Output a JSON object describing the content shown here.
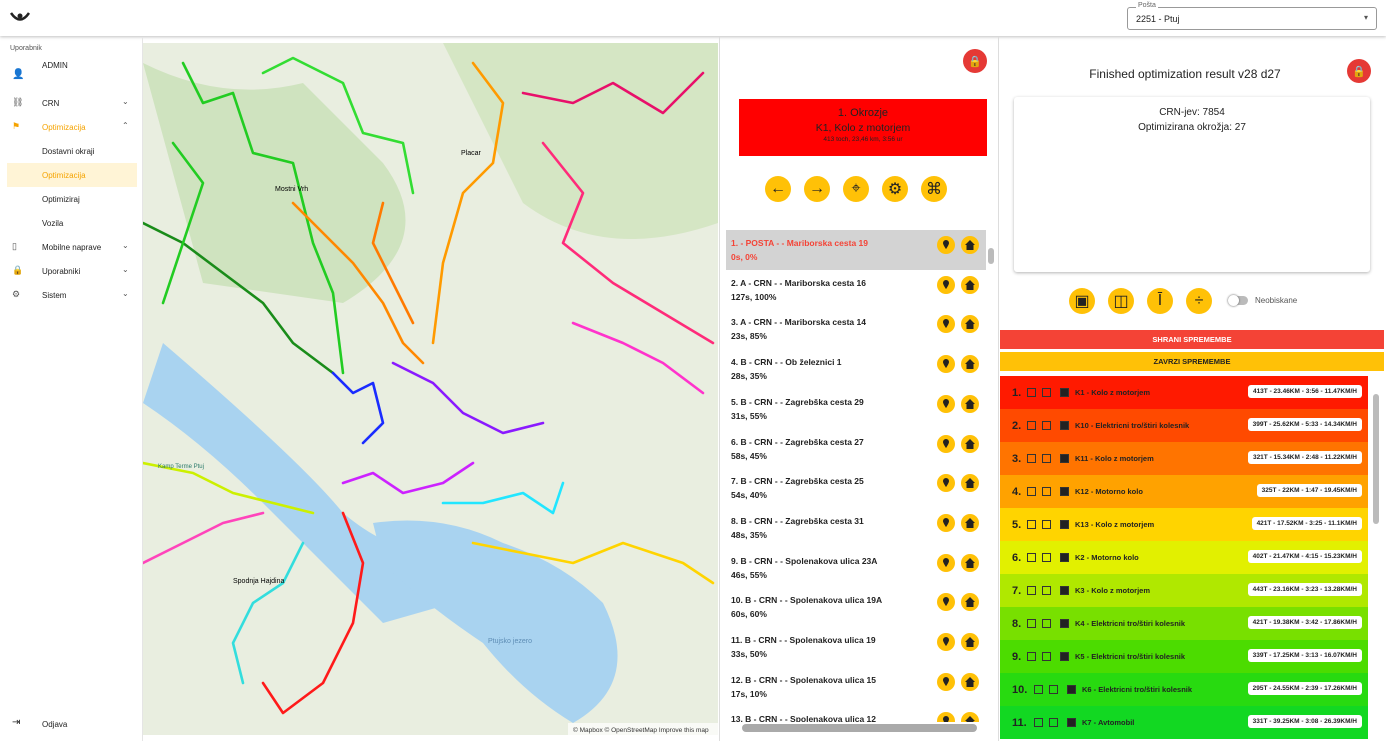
{
  "header": {
    "select_label": "Pošta",
    "select_value": "2251 - Ptuj"
  },
  "sidebar": {
    "user_label": "Uporabnik",
    "user": "ADMIN",
    "menu": [
      {
        "label": "CRN"
      },
      {
        "label": "Optimizacija",
        "items": [
          "Dostavni okraji",
          "Optimizacija",
          "Optimiziraj",
          "Vozila"
        ]
      },
      {
        "label": "Mobilne naprave"
      },
      {
        "label": "Uporabniki"
      },
      {
        "label": "Sistem"
      }
    ],
    "logout": "Odjava"
  },
  "map": {
    "labels": [
      "Mostni Vrh",
      "Placar",
      "Spodnja Hajdina",
      "Ptujsko jezero",
      "Kamp Terme Ptuj"
    ],
    "attribution": "© Mapbox © OpenStreetMap Improve this map"
  },
  "district": {
    "title": "1. Okrozje",
    "subtitle": "K1, Kolo z motorjem",
    "details": "413 toch, 23,46 km, 3:56 ur"
  },
  "stops": [
    {
      "title": "1. - POSTA - - Mariborska cesta 19",
      "info": "0s, 0%"
    },
    {
      "title": "2. A - CRN - - Mariborska cesta 16",
      "info": "127s, 100%"
    },
    {
      "title": "3. A - CRN - - Mariborska cesta 14",
      "info": "23s, 85%"
    },
    {
      "title": "4. B - CRN - - Ob železnici 1",
      "info": "28s, 35%"
    },
    {
      "title": "5. B - CRN - - Zagrebška cesta 29",
      "info": "31s, 55%"
    },
    {
      "title": "6. B - CRN - - Zagrebška cesta 27",
      "info": "58s, 45%"
    },
    {
      "title": "7. B - CRN - - Zagrebška cesta 25",
      "info": "54s, 40%"
    },
    {
      "title": "8. B - CRN - - Zagrebška cesta 31",
      "info": "48s, 35%"
    },
    {
      "title": "9. B - CRN - - Spolenakova ulica 23A",
      "info": "46s, 55%"
    },
    {
      "title": "10. B - CRN - - Spolenakova ulica 19A",
      "info": "60s, 60%"
    },
    {
      "title": "11. B - CRN - - Spolenakova ulica 19",
      "info": "33s, 50%"
    },
    {
      "title": "12. B - CRN - - Spolenakova ulica 15",
      "info": "17s, 10%"
    },
    {
      "title": "13. B - CRN - - Spolenakova ulica 12"
    }
  ],
  "result": {
    "title": "Finished optimization result v28 d27",
    "crn": "CRN-jev: 7854",
    "districts": "Optimizirana okrožja: 27",
    "toggle": "Neobiskane",
    "save": "SHRANI SPREMEMBE",
    "discard": "ZAVRZI SPREMEMBE"
  },
  "routes": [
    {
      "num": "1.",
      "name": "K1 - Kolo z motorjem",
      "stats": "413T - 23.46KM - 3:56 - 11.47KM/H",
      "color": "#ff1a00"
    },
    {
      "num": "2.",
      "name": "K10 - Elektricni tro/štiri kolesnik",
      "stats": "399T - 25.62KM - 5:33 - 14.34KM/H",
      "color": "#ff4a00"
    },
    {
      "num": "3.",
      "name": "K11 - Kolo z motorjem",
      "stats": "321T - 15.34KM - 2:48 - 11.22KM/H",
      "color": "#ff7400"
    },
    {
      "num": "4.",
      "name": "K12 - Motorno kolo",
      "stats": "325T - 22KM - 1:47 - 19.45KM/H",
      "color": "#ffa200"
    },
    {
      "num": "5.",
      "name": "K13 - Kolo z motorjem",
      "stats": "421T - 17.52KM - 3:25 - 11.1KM/H",
      "color": "#ffd400"
    },
    {
      "num": "6.",
      "name": "K2 - Motorno kolo",
      "stats": "402T - 21.47KM - 4:15 - 15.23KM/H",
      "color": "#e2f000"
    },
    {
      "num": "7.",
      "name": "K3 - Kolo z motorjem",
      "stats": "443T - 23.16KM - 3:23 - 13.28KM/H",
      "color": "#b0e800"
    },
    {
      "num": "8.",
      "name": "K4 - Elektricni tro/štiri kolesnik",
      "stats": "421T - 19.38KM - 3:42 - 17.86KM/H",
      "color": "#78e000"
    },
    {
      "num": "9.",
      "name": "K5 - Elektricni tro/štiri kolesnik",
      "stats": "339T - 17.25KM - 3:13 - 16.07KM/H",
      "color": "#4cdc00"
    },
    {
      "num": "10.",
      "name": "K6 - Elektricni tro/štiri kolesnik",
      "stats": "295T - 24.55KM - 2:39 - 17.26KM/H",
      "color": "#28da10"
    },
    {
      "num": "11.",
      "name": "K7 - Avtomobil",
      "stats": "331T - 39.25KM - 3:08 - 26.39KM/H",
      "color": "#12d822"
    }
  ]
}
